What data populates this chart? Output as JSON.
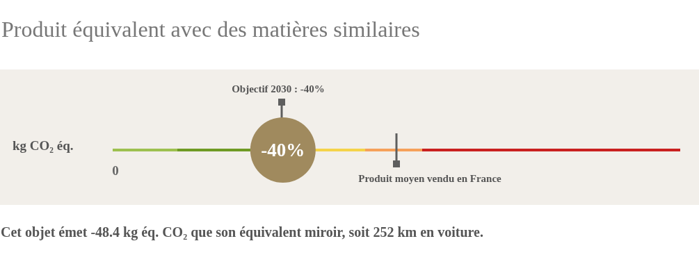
{
  "chart_data": {
    "type": "other",
    "title": "Produit équivalent avec des matières similaires",
    "ylabel": "kg CO₂ éq.",
    "values": [
      -40
    ],
    "value_labels": [
      "-40%"
    ],
    "colors": [
      "#a08a5e"
    ],
    "annotations": [
      "Objectif 2030 : -40%",
      "0",
      "Produit moyen vendu en France",
      "Cet objet émet -48.4 kg éq. CO₂ que son équivalent miroir, soit 252 km en voiture."
    ]
  }
}
